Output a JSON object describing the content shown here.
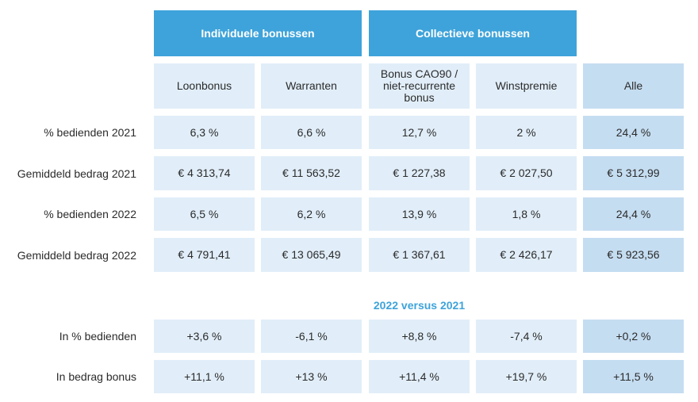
{
  "groups": {
    "individual": "Individuele bonussen",
    "collective": "Collectieve bonussen"
  },
  "columns": [
    "Loonbonus",
    "Warranten",
    "Bonus CAO90 /\nniet-recurrente\nbonus",
    "Winstpremie",
    "Alle"
  ],
  "rows": [
    {
      "label": "% bedienden 2021",
      "values": [
        "6,3 %",
        "6,6 %",
        "12,7 %",
        "2 %",
        "24,4 %"
      ]
    },
    {
      "label": "Gemiddeld bedrag 2021",
      "values": [
        "€ 4 313,74",
        "€ 11 563,52",
        "€ 1 227,38",
        "€ 2 027,50",
        "€ 5 312,99"
      ]
    },
    {
      "label": "% bedienden 2022",
      "values": [
        "6,5 %",
        "6,2 %",
        "13,9 %",
        "1,8 %",
        "24,4 %"
      ]
    },
    {
      "label": "Gemiddeld bedrag 2022",
      "values": [
        "€ 4 791,41",
        "€ 13 065,49",
        "€ 1 367,61",
        "€ 2 426,17",
        "€ 5 923,56"
      ]
    }
  ],
  "comparison": {
    "title": "2022 versus 2021",
    "rows": [
      {
        "label": "In % bedienden",
        "values": [
          "+3,6 %",
          "-6,1 %",
          "+8,8 %",
          "-7,4 %",
          "+0,2 %"
        ]
      },
      {
        "label": "In bedrag bonus",
        "values": [
          "+11,1 %",
          "+13 %",
          "+11,4 %",
          "+19,7 %",
          "+11,5 %"
        ]
      }
    ]
  },
  "colors": {
    "group_header": "#3ea3da",
    "cell": "#e1eef9",
    "alle_cell": "#c5ddf1",
    "section_title": "#3ea3da"
  }
}
